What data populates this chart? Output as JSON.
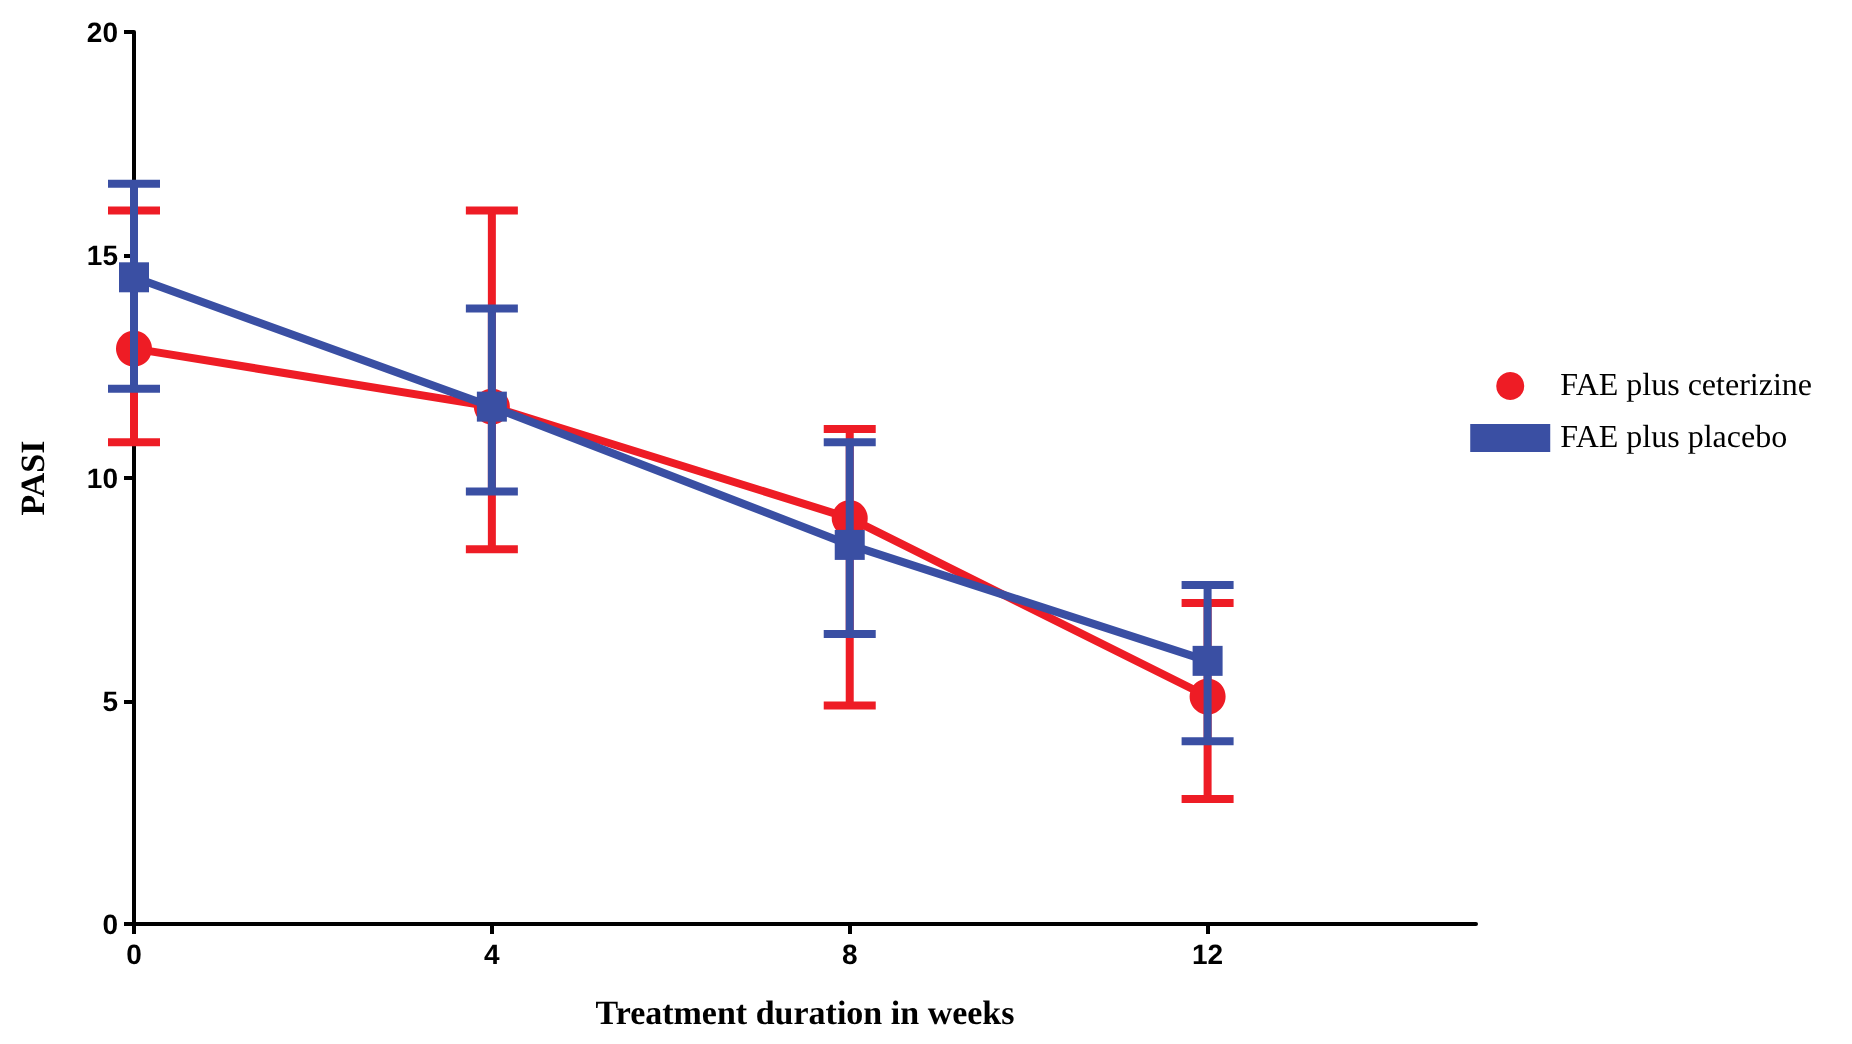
{
  "chart_data": {
    "type": "line",
    "xlabel": "Treatment duration in weeks",
    "ylabel": "PASI",
    "x": [
      0,
      4,
      8,
      12
    ],
    "series": [
      {
        "name": "FAE plus ceterizine",
        "color": "#ee1c25",
        "marker": "circle",
        "values": [
          12.9,
          11.6,
          9.1,
          5.1
        ],
        "errors": [
          [
            10.8,
            16.0
          ],
          [
            8.4,
            16.0
          ],
          [
            4.9,
            11.1
          ],
          [
            2.8,
            7.2
          ]
        ]
      },
      {
        "name": "FAE plus placebo",
        "color": "#3a4fa3",
        "marker": "square",
        "values": [
          14.5,
          11.6,
          8.5,
          5.9
        ],
        "errors": [
          [
            12.0,
            16.6
          ],
          [
            9.7,
            13.8
          ],
          [
            6.5,
            10.8
          ],
          [
            4.1,
            7.6
          ]
        ]
      }
    ],
    "xlim": [
      0,
      15
    ],
    "xticks": [
      0,
      4,
      8,
      12
    ],
    "ylim": [
      0,
      20
    ],
    "yticks": [
      0,
      5,
      10,
      15,
      20
    ],
    "grid": false,
    "legend": "right"
  }
}
